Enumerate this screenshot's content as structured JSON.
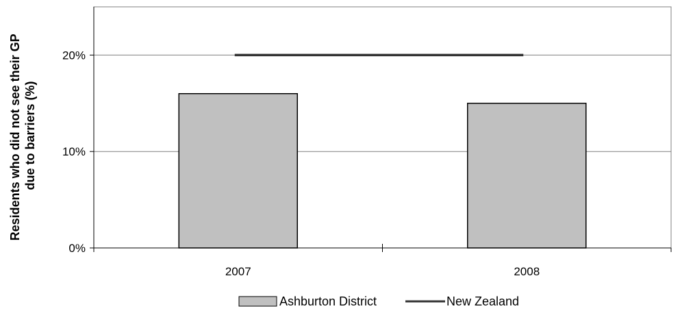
{
  "chart_data": {
    "type": "bar",
    "title": "",
    "xlabel": "",
    "ylabel_lines": [
      "Residents who did not see their GP",
      "due to barriers (%)"
    ],
    "categories": [
      "2007",
      "2008"
    ],
    "series": [
      {
        "name": "Ashburton District",
        "type": "bar",
        "values": [
          16,
          15
        ],
        "color": "#c0c0c0"
      },
      {
        "name": "New Zealand",
        "type": "line",
        "values": [
          20,
          20
        ],
        "color": "#333333"
      }
    ],
    "ylim": [
      0,
      25
    ],
    "yticks": [
      0,
      10,
      20
    ],
    "ytick_labels": [
      "0%",
      "10%",
      "20%"
    ],
    "grid": true,
    "legend_position": "bottom"
  }
}
